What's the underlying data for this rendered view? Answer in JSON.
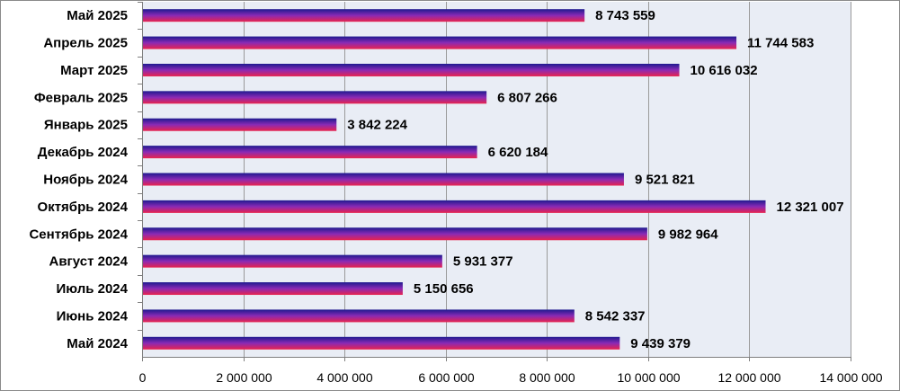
{
  "chart_data": {
    "type": "bar",
    "orientation": "horizontal",
    "categories": [
      "Май 2025",
      "Апрель 2025",
      "Март 2025",
      "Февраль 2025",
      "Январь 2025",
      "Декабрь 2024",
      "Ноябрь 2024",
      "Октябрь 2024",
      "Сентябрь 2024",
      "Август 2024",
      "Июль 2024",
      "Июнь 2024",
      "Май 2024"
    ],
    "values": [
      8743559,
      11744583,
      10616032,
      6807266,
      3842224,
      6620184,
      9521821,
      12321007,
      9982964,
      5931377,
      5150656,
      8542337,
      9439379
    ],
    "value_labels": [
      "8 743 559",
      "11 744 583",
      "10 616 032",
      "6 807 266",
      "3 842 224",
      "6 620 184",
      "9 521 821",
      "12 321 007",
      "9 982 964",
      "5 931 377",
      "5 150 656",
      "8 542 337",
      "9 439 379"
    ],
    "xlim": [
      0,
      14000000
    ],
    "x_ticks": [
      0,
      2000000,
      4000000,
      6000000,
      8000000,
      10000000,
      12000000,
      14000000
    ],
    "x_tick_labels": [
      "0",
      "2 000 000",
      "4 000 000",
      "6 000 000",
      "8 000 000",
      "10 000 000",
      "12 000 000",
      "14 000 000"
    ],
    "title": "",
    "xlabel": "",
    "ylabel": "",
    "grid": "vertical",
    "legend": "none",
    "colors": {
      "bar_top": "#1f1a8f",
      "bar_mid": "#8a2ab5",
      "bar_bottom": "#e8234d",
      "plot_background": "#e9edf5",
      "gridline": "#9a9a9a",
      "axis": "#7f7f7f"
    }
  }
}
